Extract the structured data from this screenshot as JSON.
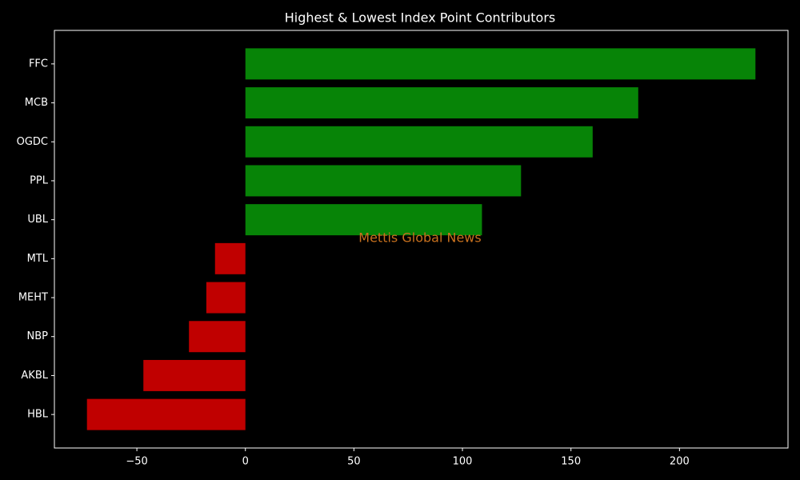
{
  "chart_data": {
    "type": "barh",
    "title": "Highest & Lowest Index Point Contributors",
    "categories": [
      "FFC",
      "MCB",
      "OGDC",
      "PPL",
      "UBL",
      "MTL",
      "MEHT",
      "NBP",
      "AKBL",
      "HBL"
    ],
    "values": [
      235,
      181,
      160,
      127,
      109,
      -14,
      -18,
      -26,
      -47,
      -73
    ],
    "positive_color": "#078407",
    "negative_color": "#c00000",
    "xlim": [
      -88,
      250
    ],
    "xticks": [
      {
        "value": -50,
        "label": "−50"
      },
      0,
      50,
      100,
      150,
      200
    ],
    "annotation": "Mettis Global News",
    "annotation_color": "#c8711e"
  }
}
